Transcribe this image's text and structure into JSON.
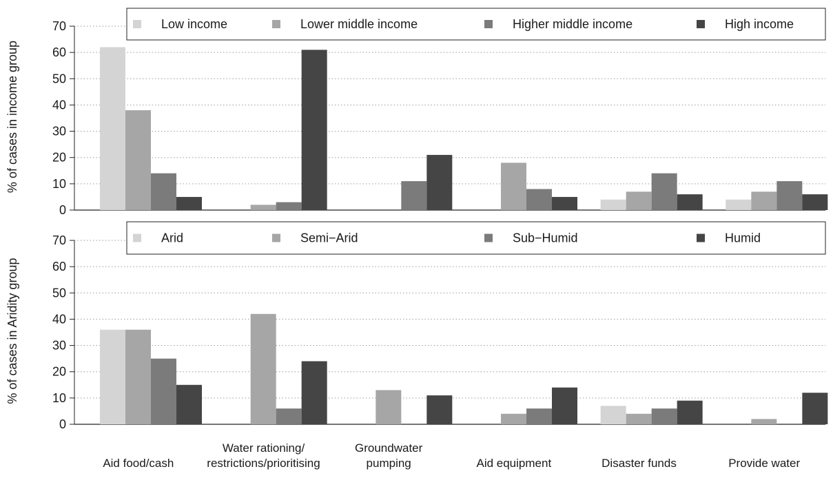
{
  "chart_data": [
    {
      "type": "bar",
      "title": "",
      "xlabel": "",
      "ylabel": "% of cases in income group",
      "ylim": [
        0,
        70
      ],
      "yticks": [
        0,
        10,
        20,
        30,
        40,
        50,
        60,
        70
      ],
      "grid": "horizontal dotted",
      "legend_position": "top",
      "categories": [
        "Aid food/cash",
        "Water rationing/\nrestrictions/prioritising",
        "Groundwater\npumping",
        "Aid equipment",
        "Disaster funds",
        "Provide water"
      ],
      "series": [
        {
          "name": "Low income",
          "color": "#d4d4d4",
          "values": [
            62,
            0,
            0,
            0,
            4,
            4
          ]
        },
        {
          "name": "Lower middle income",
          "color": "#a6a6a6",
          "values": [
            38,
            2,
            0,
            18,
            7,
            7
          ]
        },
        {
          "name": "Higher middle income",
          "color": "#7b7b7b",
          "values": [
            14,
            3,
            11,
            8,
            14,
            11
          ]
        },
        {
          "name": "High income",
          "color": "#454545",
          "values": [
            5,
            61,
            21,
            5,
            6,
            6
          ]
        }
      ]
    },
    {
      "type": "bar",
      "title": "",
      "xlabel": "",
      "ylabel": "% of cases in Aridity group",
      "ylim": [
        0,
        70
      ],
      "yticks": [
        0,
        10,
        20,
        30,
        40,
        50,
        60,
        70
      ],
      "grid": "horizontal dotted",
      "legend_position": "top",
      "categories": [
        "Aid food/cash",
        "Water rationing/\nrestrictions/prioritising",
        "Groundwater\npumping",
        "Aid equipment",
        "Disaster funds",
        "Provide water"
      ],
      "series": [
        {
          "name": "Arid",
          "color": "#d4d4d4",
          "values": [
            36,
            0,
            0,
            0,
            7,
            0
          ]
        },
        {
          "name": "Semi−Arid",
          "color": "#a6a6a6",
          "values": [
            36,
            42,
            13,
            4,
            4,
            2
          ]
        },
        {
          "name": "Sub−Humid",
          "color": "#7b7b7b",
          "values": [
            25,
            6,
            0,
            6,
            6,
            0
          ]
        },
        {
          "name": "Humid",
          "color": "#454545",
          "values": [
            15,
            24,
            11,
            14,
            9,
            12
          ]
        }
      ]
    }
  ]
}
